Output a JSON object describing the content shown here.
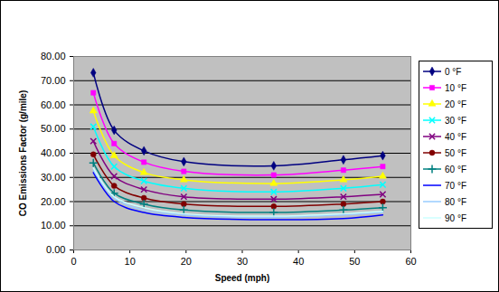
{
  "chart_data": {
    "type": "line",
    "x_label": "Speed (mph)",
    "y_label": "CO Emissions Factor (g/mile)",
    "x": [
      3.5,
      7.2,
      12.5,
      19.6,
      35.6,
      48,
      55
    ],
    "xlim": [
      0,
      60
    ],
    "xticks": [
      0,
      10,
      20,
      30,
      40,
      50,
      60
    ],
    "ylim": [
      0,
      80
    ],
    "yticks": [
      {
        "value": 0,
        "label": "0.00"
      },
      {
        "value": 10,
        "label": "10.00"
      },
      {
        "value": 20,
        "label": "20.00"
      },
      {
        "value": 30,
        "label": "30.00"
      },
      {
        "value": 40,
        "label": "40.00"
      },
      {
        "value": 50,
        "label": "50.00"
      },
      {
        "value": 60,
        "label": "60.00"
      },
      {
        "value": 70,
        "label": "70.00"
      },
      {
        "value": 80,
        "label": "80.00"
      }
    ],
    "grid": true,
    "legend": "right",
    "series": [
      {
        "name": "0 °F",
        "color": "#000080",
        "marker": "diamond",
        "values": [
          73.3,
          49.5,
          41,
          36.5,
          34.8,
          37.3,
          39
        ]
      },
      {
        "name": "10 °F",
        "color": "#ff00ff",
        "marker": "square",
        "values": [
          65,
          44,
          36.3,
          32.5,
          31,
          33,
          34.5
        ]
      },
      {
        "name": "20 °F",
        "color": "#ffff00",
        "marker": "triangle",
        "values": [
          57.5,
          39,
          32,
          29,
          27.5,
          29,
          30.5
        ]
      },
      {
        "name": "30 °F",
        "color": "#00ffff",
        "marker": "times",
        "values": [
          51,
          34.5,
          28.5,
          25.5,
          24,
          25.5,
          27
        ]
      },
      {
        "name": "40 °F",
        "color": "#800080",
        "marker": "times",
        "values": [
          45,
          30.5,
          25,
          22,
          21,
          22,
          23
        ]
      },
      {
        "name": "50 °F",
        "color": "#800000",
        "marker": "circle",
        "values": [
          39.5,
          26.5,
          21.5,
          19,
          18,
          19,
          20
        ]
      },
      {
        "name": "60 °F",
        "color": "#008080",
        "marker": "plus",
        "values": [
          36,
          23.5,
          19,
          16.5,
          15.5,
          16.5,
          17.5
        ]
      },
      {
        "name": "70 °F",
        "color": "#0000ff",
        "marker": "none",
        "values": [
          32,
          20,
          15.5,
          13.5,
          12.5,
          13,
          14.5
        ]
      },
      {
        "name": "80 °F",
        "color": "#99ccff",
        "marker": "none",
        "values": [
          33,
          21.5,
          16.5,
          14.5,
          13.5,
          14.5,
          15.5
        ]
      },
      {
        "name": "90 °F",
        "color": "#ccffff",
        "marker": "none",
        "values": [
          34,
          22,
          17.5,
          15,
          14,
          15,
          16
        ]
      }
    ]
  }
}
